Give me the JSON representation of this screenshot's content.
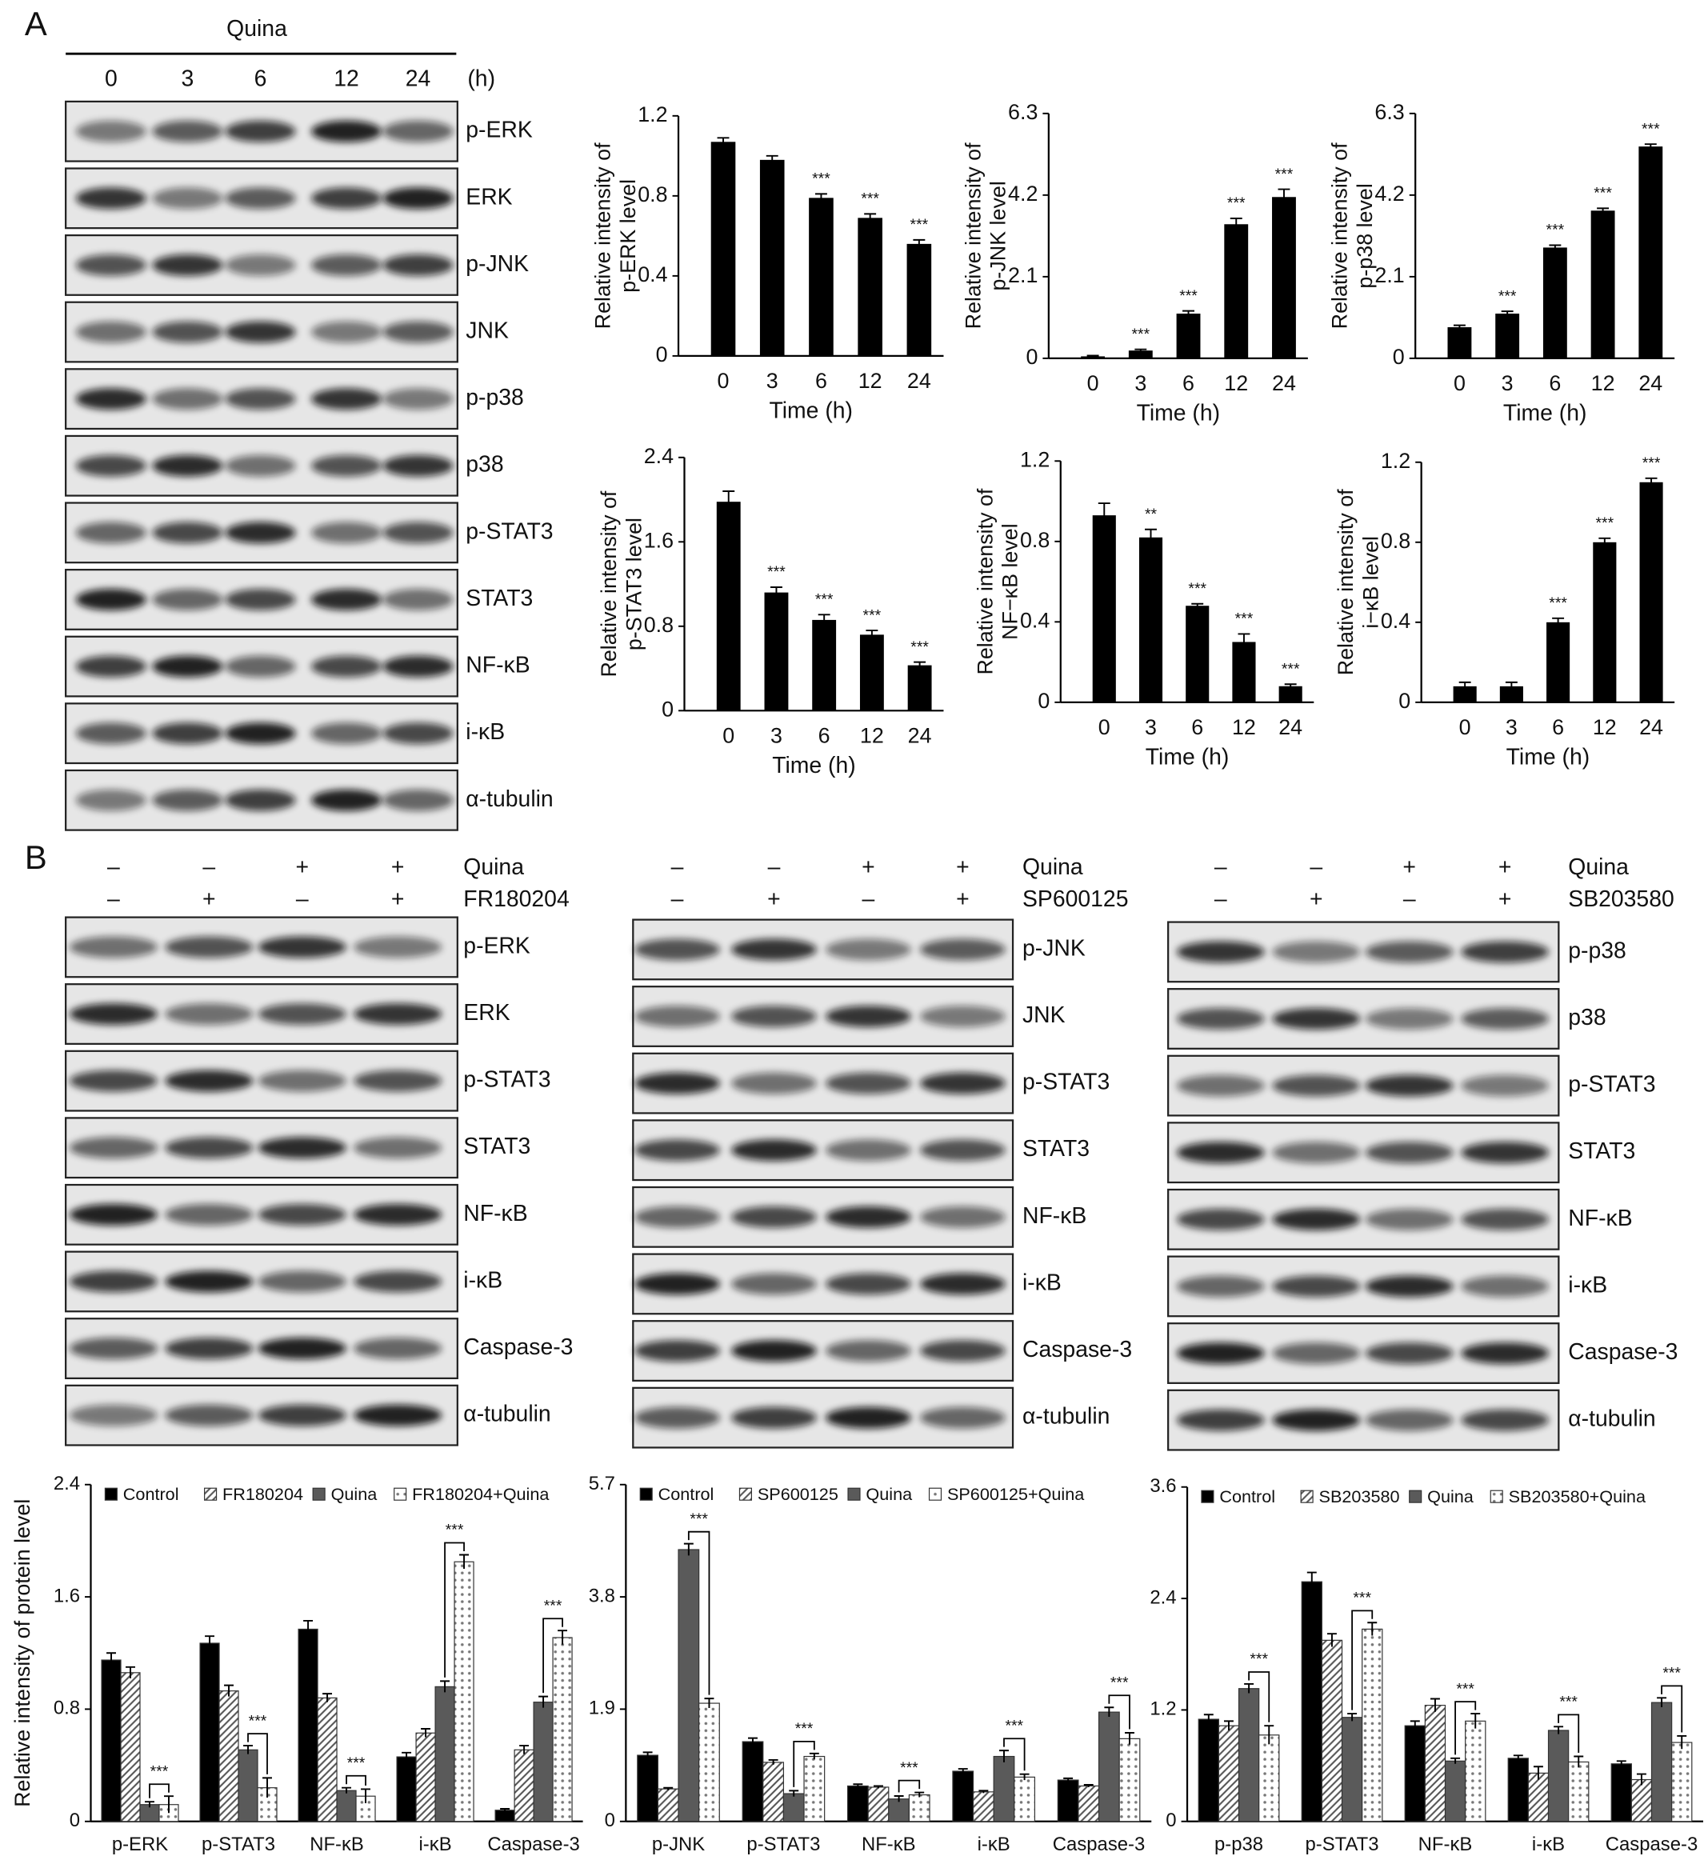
{
  "panel_a": {
    "label": "A",
    "treatment": "Quina",
    "lanes": [
      "0",
      "3",
      "6",
      "12",
      "24"
    ],
    "unit": "(h)",
    "proteins": [
      "p-ERK",
      "ERK",
      "p-JNK",
      "JNK",
      "p-p38",
      "p38",
      "p-STAT3",
      "STAT3",
      "NF-κB",
      "i-κB",
      "α-tubulin"
    ]
  },
  "panel_b": {
    "label": "B",
    "blots": [
      {
        "row_labels": [
          "Quina",
          "FR180204"
        ],
        "quina": [
          "–",
          "–",
          "+",
          "+"
        ],
        "inhibitor": [
          "–",
          "+",
          "–",
          "+"
        ],
        "proteins": [
          "p-ERK",
          "ERK",
          "p-STAT3",
          "STAT3",
          "NF-κB",
          "i-κB",
          "Caspase-3",
          "α-tubulin"
        ]
      },
      {
        "row_labels": [
          "Quina",
          "SP600125"
        ],
        "quina": [
          "–",
          "–",
          "+",
          "+"
        ],
        "inhibitor": [
          "–",
          "+",
          "–",
          "+"
        ],
        "proteins": [
          "p-JNK",
          "JNK",
          "p-STAT3",
          "STAT3",
          "NF-κB",
          "i-κB",
          "Caspase-3",
          "α-tubulin"
        ]
      },
      {
        "row_labels": [
          "Quina",
          "SB203580"
        ],
        "quina": [
          "–",
          "–",
          "+",
          "+"
        ],
        "inhibitor": [
          "–",
          "+",
          "–",
          "+"
        ],
        "proteins": [
          "p-p38",
          "p38",
          "p-STAT3",
          "STAT3",
          "NF-κB",
          "i-κB",
          "Caspase-3",
          "α-tubulin"
        ]
      }
    ]
  },
  "chart_data": [
    {
      "type": "bar",
      "ylabel": [
        "Relative intensity of",
        "p-ERK level"
      ],
      "xlabel": "Time (h)",
      "categories": [
        "0",
        "3",
        "6",
        "12",
        "24"
      ],
      "values": [
        1.07,
        0.98,
        0.79,
        0.69,
        0.56
      ],
      "errors": [
        0.02,
        0.02,
        0.02,
        0.02,
        0.02
      ],
      "annotations": [
        null,
        null,
        "***",
        "***",
        "***"
      ],
      "color": "#000000",
      "ylim": [
        0,
        1.2
      ],
      "yticks": [
        0,
        0.4,
        0.8,
        1.2
      ]
    },
    {
      "type": "bar",
      "ylabel": [
        "Relative intensity of",
        "p-JNK level"
      ],
      "xlabel": "Time (h)",
      "categories": [
        "0",
        "3",
        "6",
        "12",
        "24"
      ],
      "values": [
        0.05,
        0.2,
        1.15,
        3.45,
        4.15
      ],
      "errors": [
        0.02,
        0.03,
        0.07,
        0.15,
        0.2
      ],
      "annotations": [
        null,
        "***",
        "***",
        "***",
        "***"
      ],
      "color": "#000000",
      "ylim": [
        0,
        6.3
      ],
      "yticks": [
        0,
        2.1,
        4.2,
        6.3
      ]
    },
    {
      "type": "bar",
      "ylabel": [
        "Relative intensity of",
        "p-p38 level"
      ],
      "xlabel": "Time (h)",
      "categories": [
        "0",
        "3",
        "6",
        "12",
        "24"
      ],
      "values": [
        0.8,
        1.15,
        2.85,
        3.8,
        5.45
      ],
      "errors": [
        0.05,
        0.06,
        0.06,
        0.06,
        0.06
      ],
      "annotations": [
        null,
        "***",
        "***",
        "***",
        "***"
      ],
      "color": "#000000",
      "ylim": [
        0,
        6.3
      ],
      "yticks": [
        0,
        2.1,
        4.2,
        6.3
      ]
    },
    {
      "type": "bar",
      "ylabel": [
        "Relative intensity of",
        "p-STAT3 level"
      ],
      "xlabel": "Time (h)",
      "categories": [
        "0",
        "3",
        "6",
        "12",
        "24"
      ],
      "values": [
        1.98,
        1.12,
        0.86,
        0.72,
        0.43
      ],
      "errors": [
        0.1,
        0.05,
        0.05,
        0.04,
        0.03
      ],
      "annotations": [
        null,
        "***",
        "***",
        "***",
        "***"
      ],
      "color": "#000000",
      "ylim": [
        0,
        2.4
      ],
      "yticks": [
        0,
        0.8,
        1.6,
        2.4
      ]
    },
    {
      "type": "bar",
      "ylabel": [
        "Relative intensity of",
        "NF−κB level"
      ],
      "xlabel": "Time (h)",
      "categories": [
        "0",
        "3",
        "6",
        "12",
        "24"
      ],
      "values": [
        0.93,
        0.82,
        0.48,
        0.3,
        0.08
      ],
      "errors": [
        0.06,
        0.04,
        0.01,
        0.04,
        0.01
      ],
      "annotations": [
        null,
        "**",
        "***",
        "***",
        "***"
      ],
      "color": "#000000",
      "ylim": [
        0,
        1.2
      ],
      "yticks": [
        0,
        0.4,
        0.8,
        1.2
      ]
    },
    {
      "type": "bar",
      "ylabel": [
        "Relative intensity of",
        "i−κB level"
      ],
      "xlabel": "Time (h)",
      "categories": [
        "0",
        "3",
        "6",
        "12",
        "24"
      ],
      "values": [
        0.08,
        0.08,
        0.4,
        0.8,
        1.1
      ],
      "errors": [
        0.02,
        0.02,
        0.02,
        0.02,
        0.02
      ],
      "annotations": [
        null,
        null,
        "***",
        "***",
        "***"
      ],
      "color": "#000000",
      "ylim": [
        0,
        1.2
      ],
      "yticks": [
        0,
        0.4,
        0.8,
        1.2
      ]
    },
    {
      "type": "grouped_bar",
      "ylabel": "Relative intensity of protein level",
      "categories": [
        "p-ERK",
        "p-STAT3",
        "NF-κB",
        "i-κB",
        "Caspase-3"
      ],
      "series": [
        {
          "name": "Control",
          "color": "#000000",
          "pattern": "solid",
          "values": [
            1.15,
            1.27,
            1.37,
            0.46,
            0.08
          ],
          "errors": [
            0.05,
            0.05,
            0.06,
            0.03,
            0.01
          ]
        },
        {
          "name": "FR180204",
          "color": "#555555",
          "pattern": "hatch",
          "values": [
            1.06,
            0.93,
            0.88,
            0.63,
            0.51
          ],
          "errors": [
            0.04,
            0.04,
            0.03,
            0.03,
            0.03
          ]
        },
        {
          "name": "Quina",
          "color": "#5a5a5a",
          "pattern": "solid",
          "values": [
            0.12,
            0.51,
            0.22,
            0.96,
            0.85
          ],
          "errors": [
            0.02,
            0.03,
            0.02,
            0.04,
            0.04
          ]
        },
        {
          "name": "FR180204+Quina",
          "color": "#777777",
          "pattern": "dots",
          "values": [
            0.12,
            0.24,
            0.18,
            1.85,
            1.31
          ],
          "errors": [
            0.06,
            0.07,
            0.05,
            0.05,
            0.05
          ]
        }
      ],
      "annotations": [
        "***",
        "***",
        "***",
        "***",
        "***"
      ],
      "ylim": [
        0,
        2.4
      ],
      "yticks": [
        0,
        0.8,
        1.6,
        2.4
      ]
    },
    {
      "type": "grouped_bar",
      "categories": [
        "p-JNK",
        "p-STAT3",
        "NF-κB",
        "i-κB",
        "Caspase-3"
      ],
      "series": [
        {
          "name": "Control",
          "color": "#000000",
          "pattern": "solid",
          "values": [
            1.12,
            1.35,
            0.6,
            0.85,
            0.7
          ],
          "errors": [
            0.05,
            0.06,
            0.03,
            0.04,
            0.03
          ]
        },
        {
          "name": "SP600125",
          "color": "#555555",
          "pattern": "hatch",
          "values": [
            0.55,
            1.0,
            0.58,
            0.5,
            0.6
          ],
          "errors": [
            0.02,
            0.04,
            0.02,
            0.02,
            0.02
          ]
        },
        {
          "name": "Quina",
          "color": "#5a5a5a",
          "pattern": "solid",
          "values": [
            4.6,
            0.47,
            0.38,
            1.1,
            1.85
          ],
          "errors": [
            0.1,
            0.05,
            0.05,
            0.1,
            0.08
          ]
        },
        {
          "name": "SP600125+Quina",
          "color": "#777777",
          "pattern": "dots",
          "values": [
            2.0,
            1.1,
            0.45,
            0.75,
            1.4
          ],
          "errors": [
            0.08,
            0.05,
            0.04,
            0.05,
            0.1
          ]
        }
      ],
      "annotations": [
        "***",
        "***",
        "***",
        "***",
        "***"
      ],
      "ylim": [
        0,
        5.7
      ],
      "yticks": [
        0,
        1.9,
        3.8,
        5.7
      ]
    },
    {
      "type": "grouped_bar",
      "categories": [
        "p-p38",
        "p-STAT3",
        "NF-κB",
        "i-κB",
        "Caspase-3"
      ],
      "series": [
        {
          "name": "Control",
          "color": "#000000",
          "pattern": "solid",
          "values": [
            1.1,
            2.58,
            1.03,
            0.68,
            0.62
          ],
          "errors": [
            0.05,
            0.1,
            0.05,
            0.03,
            0.03
          ]
        },
        {
          "name": "SB203580",
          "color": "#555555",
          "pattern": "hatch",
          "values": [
            1.03,
            1.95,
            1.25,
            0.52,
            0.45
          ],
          "errors": [
            0.05,
            0.07,
            0.07,
            0.07,
            0.06
          ]
        },
        {
          "name": "Quina",
          "color": "#5a5a5a",
          "pattern": "solid",
          "values": [
            1.43,
            1.12,
            0.65,
            0.98,
            1.28
          ],
          "errors": [
            0.05,
            0.04,
            0.03,
            0.04,
            0.05
          ]
        },
        {
          "name": "SB203580+Quina",
          "color": "#777777",
          "pattern": "dots",
          "values": [
            0.93,
            2.07,
            1.08,
            0.64,
            0.85
          ],
          "errors": [
            0.1,
            0.07,
            0.08,
            0.06,
            0.07
          ]
        }
      ],
      "annotations": [
        "***",
        "***",
        "***",
        "***",
        "***"
      ],
      "ylim": [
        0,
        3.6
      ],
      "yticks": [
        0,
        1.2,
        2.4,
        3.6
      ]
    }
  ]
}
